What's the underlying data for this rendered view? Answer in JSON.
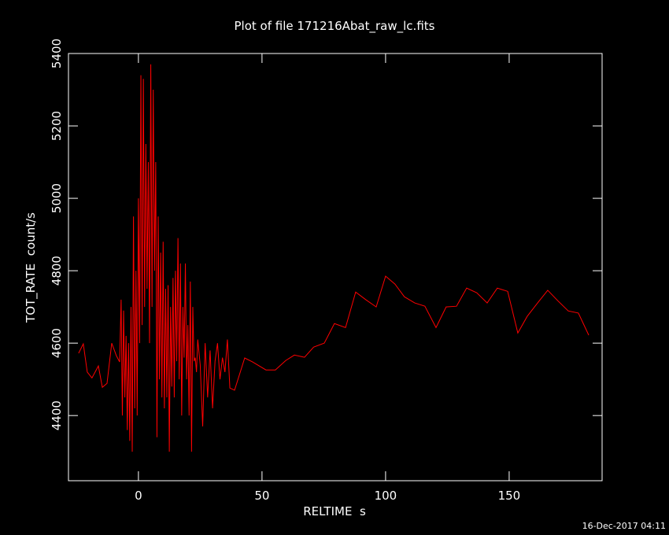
{
  "chart_data": {
    "type": "line",
    "title": "Plot of file 171216Abat_raw_lc.fits",
    "xlabel": "RELTIME  s",
    "ylabel": "TOT_RATE  count/s",
    "footer": "16-Dec-2017 04:11",
    "xlim": [
      -28.3,
      187.6
    ],
    "ylim": [
      4220,
      5400
    ],
    "xticks": [
      0,
      50,
      100,
      150
    ],
    "yticks": [
      4400,
      4600,
      4800,
      5000,
      5200,
      5400
    ],
    "series": [
      {
        "color": "#ff0000",
        "x": [
          -24.2,
          -22.3,
          -20.7,
          -18.8,
          -16.2,
          -14.6,
          -12.7,
          -10.8,
          -8.9,
          -7.6,
          -7,
          -6.5,
          -6,
          -5.5,
          -5,
          -4.5,
          -4,
          -3.5,
          -3,
          -2.5,
          -2,
          -1.5,
          -1,
          -0.5,
          0,
          0.5,
          1,
          1.5,
          2,
          2.5,
          3,
          3.5,
          4,
          4.5,
          5,
          5.5,
          6,
          6.5,
          7,
          7.5,
          8,
          8.5,
          9,
          9.5,
          10,
          10.5,
          11,
          11.5,
          12,
          12.5,
          13,
          13.5,
          14,
          14.5,
          15,
          15.5,
          16,
          16.5,
          17,
          17.5,
          18,
          18.5,
          19,
          19.5,
          20,
          20.5,
          21,
          21.5,
          22,
          22.5,
          23,
          23.5,
          24,
          25,
          26,
          27,
          28,
          29,
          30,
          31,
          32,
          33,
          34,
          35,
          36,
          37,
          38.9,
          43,
          46.2,
          51.6,
          55.4,
          59.6,
          63.1,
          67.2,
          70.9,
          75.2,
          79.3,
          83.8,
          87.9,
          92,
          96.2,
          100,
          103.8,
          107.6,
          111.8,
          115.9,
          120.4,
          124.5,
          128.7,
          132.8,
          136.9,
          141.1,
          145.2,
          149.4,
          153.5,
          157.3,
          161.5,
          165.6,
          169.7,
          173.9,
          178,
          182.2
        ],
        "values": [
          4572,
          4598,
          4520,
          4504,
          4537,
          4478,
          4489,
          4600,
          4565,
          4548,
          4720,
          4400,
          4690,
          4450,
          4620,
          4360,
          4600,
          4330,
          4700,
          4300,
          4950,
          4420,
          4800,
          4400,
          5000,
          4600,
          5340,
          4650,
          5330,
          4700,
          5150,
          4750,
          5100,
          4600,
          5370,
          4700,
          5300,
          4800,
          5100,
          4340,
          4950,
          4500,
          4850,
          4450,
          4880,
          4420,
          4750,
          4450,
          4760,
          4300,
          4700,
          4480,
          4780,
          4450,
          4800,
          4550,
          4890,
          4500,
          4820,
          4400,
          4700,
          4560,
          4820,
          4500,
          4650,
          4400,
          4770,
          4300,
          4700,
          4550,
          4560,
          4520,
          4610,
          4540,
          4370,
          4600,
          4450,
          4580,
          4420,
          4550,
          4600,
          4500,
          4560,
          4520,
          4610,
          4476,
          4470,
          4559,
          4548,
          4526,
          4526,
          4552,
          4567,
          4561,
          4589,
          4600,
          4654,
          4643,
          4741,
          4720,
          4700,
          4785,
          4763,
          4728,
          4711,
          4702,
          4643,
          4700,
          4702,
          4752,
          4739,
          4711,
          4752,
          4743,
          4628,
          4674,
          4711,
          4746,
          4717,
          4689,
          4683,
          4622
        ]
      }
    ]
  }
}
